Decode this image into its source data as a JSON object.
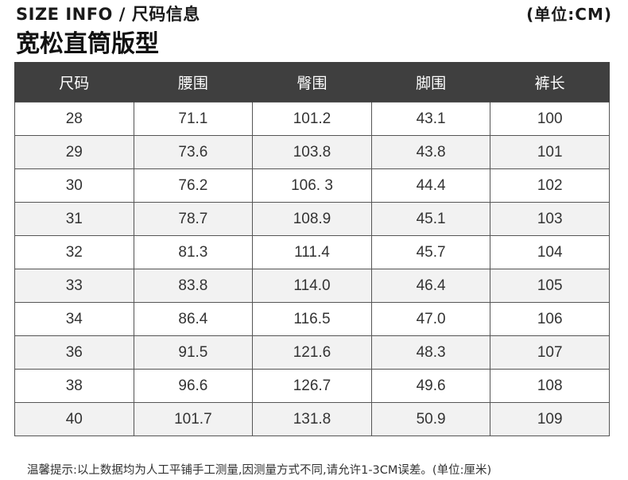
{
  "header": {
    "info_label": "SIZE INFO / 尺码信息",
    "unit_label": "(单位:CM)",
    "fit_title": "宽松直筒版型"
  },
  "table": {
    "columns": [
      "尺码",
      "腰围",
      "臀围",
      "脚围",
      "裤长"
    ],
    "rows": [
      [
        "28",
        "71.1",
        "101.2",
        "43.1",
        "100"
      ],
      [
        "29",
        "73.6",
        "103.8",
        "43.8",
        "101"
      ],
      [
        "30",
        "76.2",
        "106. 3",
        "44.4",
        "102"
      ],
      [
        "31",
        "78.7",
        "108.9",
        "45.1",
        "103"
      ],
      [
        "32",
        "81.3",
        "111.4",
        "45.7",
        "104"
      ],
      [
        "33",
        "83.8",
        "114.0",
        "46.4",
        "105"
      ],
      [
        "34",
        "86.4",
        "116.5",
        "47.0",
        "106"
      ],
      [
        "36",
        "91.5",
        "121.6",
        "48.3",
        "107"
      ],
      [
        "38",
        "96.6",
        "126.7",
        "49.6",
        "108"
      ],
      [
        "40",
        "101.7",
        "131.8",
        "50.9",
        "109"
      ]
    ],
    "header_color": "#3f3f3f",
    "alt_row_color": "#f2f2f2"
  },
  "footnote": "温馨提示:以上数据均为人工平铺手工测量,因测量方式不同,请允许1-3CM误差。(单位:厘米)"
}
